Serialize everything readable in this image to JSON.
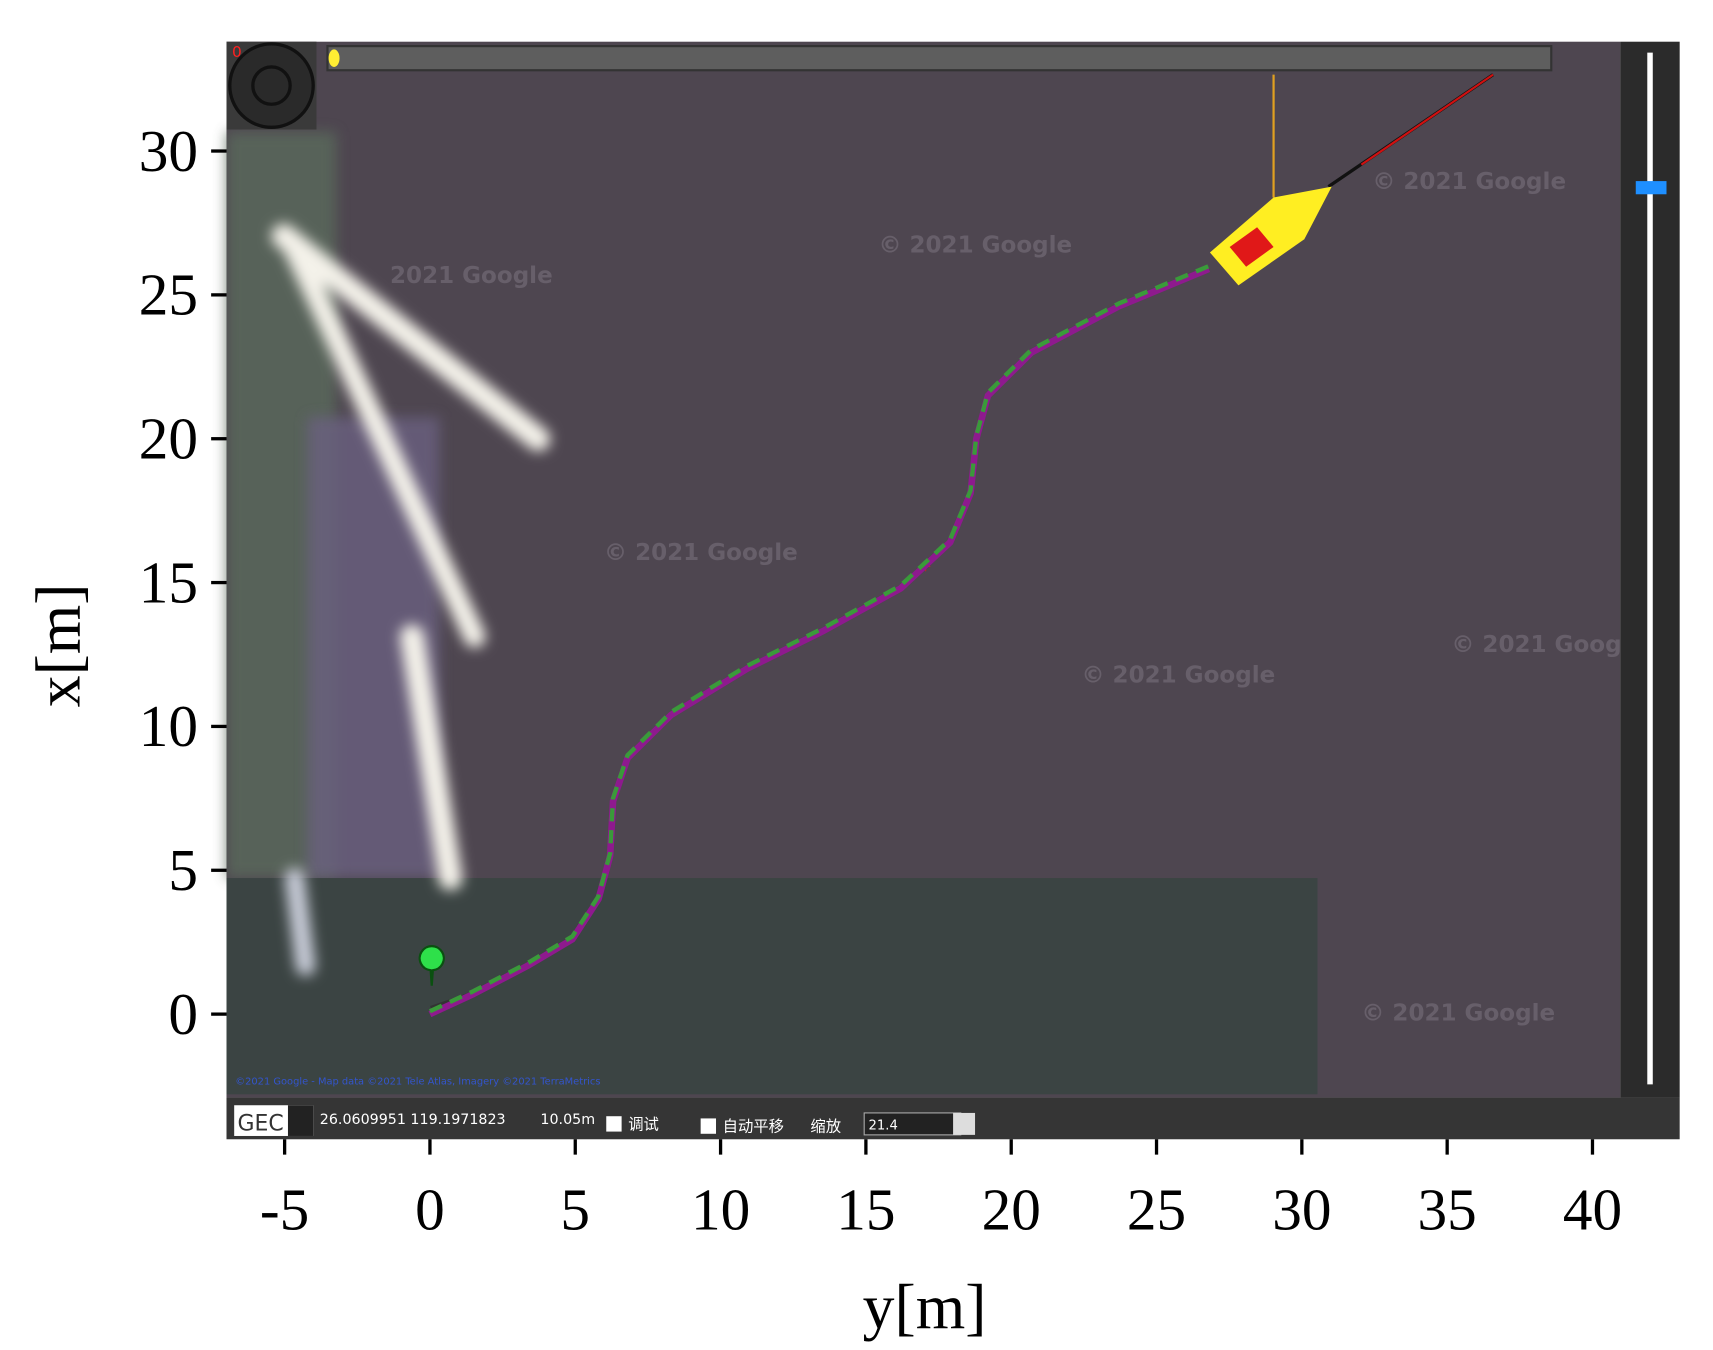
{
  "chart_data": {
    "type": "line",
    "xlabel": "y[m]",
    "ylabel": "x[m]",
    "x": [
      0,
      1.5,
      3.4,
      4.9,
      5.8,
      6.2,
      6.3,
      6.8,
      8.3,
      10.9,
      13.5,
      16.2,
      17.9,
      18.6,
      18.8,
      19.2,
      20.7,
      23.7,
      26.8
    ],
    "series": [
      {
        "color": "#8e1a8e",
        "style": "solid",
        "values": [
          0,
          0.7,
          1.7,
          2.6,
          4.0,
          5.5,
          7.4,
          8.9,
          10.4,
          12.0,
          13.3,
          14.8,
          16.4,
          18.1,
          20.0,
          21.5,
          23.0,
          24.6,
          25.9
        ]
      },
      {
        "color": "#3a9a3a",
        "style": "dashed",
        "values": [
          0.1,
          0.8,
          1.8,
          2.7,
          4.1,
          5.6,
          7.5,
          9.0,
          10.5,
          12.1,
          13.4,
          14.9,
          16.5,
          18.2,
          20.1,
          21.6,
          23.1,
          24.7,
          26.0
        ]
      }
    ],
    "xlim": [
      -7,
      43
    ],
    "ylim": [
      -4.35,
      33.8
    ],
    "xticks": [
      -5,
      0,
      5,
      10,
      15,
      20,
      25,
      30,
      35,
      40
    ],
    "yticks": [
      0,
      5,
      10,
      15,
      20,
      25,
      30
    ]
  },
  "map_ui": {
    "counter": "0",
    "projection": "GEC",
    "coordinates": "26.0609951 119.1971823",
    "distance": "10.05m",
    "debug_label": "调试",
    "auto_pan_label": "自动平移",
    "zoom_label": "缩放",
    "zoom_value": "21.4",
    "attribution": "©2021 Google - Map data ©2021 Tele Atlas, Imagery ©2021 TerraMetrics",
    "watermarks": [
      "© 2021 Google",
      "2021 Google",
      "© 2021 Google",
      "© 2021 Google",
      "© 2021 Google",
      "© 2021 Goog",
      "© 2021 Google"
    ]
  }
}
